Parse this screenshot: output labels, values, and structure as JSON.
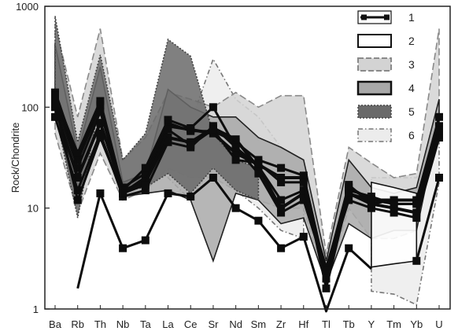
{
  "chart_data": {
    "type": "line",
    "ylabel": "Rock/Chondrite",
    "yscale": "log",
    "ylim": [
      1,
      1000
    ],
    "y_ticks": [
      {
        "value": 1,
        "label": "1"
      },
      {
        "value": 10,
        "label": "10"
      },
      {
        "value": 100,
        "label": "100"
      },
      {
        "value": 1000,
        "label": "1000"
      }
    ],
    "categories": [
      "Ba",
      "Rb",
      "Th",
      "Nb",
      "Ta",
      "La",
      "Ce",
      "Sr",
      "Nd",
      "Sm",
      "Zr",
      "Hf",
      "Tl",
      "Tb",
      "Y",
      "Tm",
      "Yb",
      "U"
    ],
    "grid": false,
    "legend_position": "top-right",
    "legend": [
      {
        "key": "1",
        "label": "1",
        "style": "line-with-square-markers",
        "color": "#111111"
      },
      {
        "key": "2",
        "label": "2",
        "style": "white-band-black-outline",
        "color": "#ffffff"
      },
      {
        "key": "3",
        "label": "3",
        "style": "light-grey-band-dashed",
        "color": "#d3d3d3"
      },
      {
        "key": "4",
        "label": "4",
        "style": "medium-grey-band-solid",
        "color": "#a9a9a9"
      },
      {
        "key": "5",
        "label": "5",
        "style": "dark-grey-band-dotted",
        "color": "#6a6a6a"
      },
      {
        "key": "6",
        "label": "6",
        "style": "very-light-band-dash-dot",
        "color": "#ececec"
      }
    ],
    "fields": [
      {
        "key": "6",
        "fill": "#ececec",
        "stroke": "#777777",
        "dash": "6,3,1.5,3",
        "upper": [
          null,
          null,
          null,
          null,
          null,
          75,
          70,
          300,
          120,
          80,
          40,
          30,
          null,
          null,
          20,
          20,
          20,
          45
        ],
        "lower": [
          null,
          null,
          null,
          null,
          null,
          20,
          12,
          28,
          15,
          10,
          6,
          5,
          null,
          null,
          1.5,
          1.4,
          1.1,
          18
        ]
      },
      {
        "key": "3",
        "fill": "#d3d3d3",
        "stroke": "#8a8a8a",
        "dash": "9,4",
        "upper": [
          650,
          80,
          600,
          30,
          50,
          140,
          120,
          100,
          140,
          100,
          130,
          130,
          3.5,
          40,
          28,
          20,
          22,
          600
        ],
        "lower": [
          55,
          9,
          35,
          12,
          15,
          25,
          20,
          20,
          15,
          12,
          10,
          10,
          1.8,
          10,
          5,
          5,
          6,
          80
        ]
      },
      {
        "key": "4",
        "fill": "#a9a9a9",
        "stroke": "#222222",
        "dash": "",
        "upper": [
          420,
          35,
          250,
          18,
          22,
          150,
          100,
          80,
          80,
          50,
          40,
          30,
          3,
          30,
          16,
          14,
          16,
          120
        ],
        "lower": [
          80,
          12,
          55,
          13,
          14,
          15,
          12,
          3,
          14,
          12,
          7,
          8,
          1.8,
          7,
          5,
          6,
          6,
          70
        ]
      },
      {
        "key": "5",
        "fill": "#6a6a6a",
        "stroke": "#444444",
        "dash": "2,2",
        "upper": [
          800,
          45,
          330,
          30,
          55,
          470,
          320,
          55,
          30,
          25,
          null,
          null,
          null,
          null,
          null,
          null,
          null,
          null
        ],
        "lower": [
          90,
          8,
          120,
          15,
          16,
          22,
          14,
          25,
          15,
          12,
          null,
          null,
          null,
          null,
          null,
          null,
          null,
          null
        ]
      },
      {
        "key": "2",
        "fill": "#ffffff",
        "stroke": "#111111",
        "dash": "",
        "upper": [
          null,
          null,
          null,
          null,
          null,
          null,
          null,
          null,
          null,
          null,
          null,
          null,
          null,
          null,
          18,
          16,
          14,
          null
        ],
        "lower": [
          null,
          null,
          null,
          null,
          null,
          null,
          null,
          null,
          null,
          null,
          null,
          null,
          null,
          null,
          2.6,
          2.8,
          3,
          null
        ]
      }
    ],
    "series": [
      {
        "key": "1",
        "values": [
          140,
          30,
          105,
          14,
          20,
          65,
          60,
          55,
          35,
          27,
          20,
          20,
          2.0,
          16,
          12,
          12,
          12,
          60
        ],
        "markers": true,
        "width": 4
      },
      {
        "key": "1",
        "values": [
          120,
          25,
          90,
          16,
          22,
          70,
          58,
          58,
          45,
          30,
          25,
          21,
          2.2,
          15,
          13,
          11,
          11,
          65
        ],
        "markers": true,
        "width": 3
      },
      {
        "key": "1",
        "values": [
          100,
          20,
          70,
          15,
          18,
          50,
          45,
          62,
          48,
          25,
          10,
          14,
          2.5,
          14,
          11,
          10,
          9,
          55
        ],
        "markers": true,
        "width": 4
      },
      {
        "key": "1",
        "values": [
          80,
          15,
          55,
          13,
          15,
          45,
          40,
          65,
          40,
          22,
          9,
          12,
          2.3,
          12,
          10,
          9,
          8,
          50
        ],
        "markers": true,
        "width": 3
      },
      {
        "key": "1",
        "values": [
          130,
          35,
          115,
          15,
          25,
          75,
          62,
          100,
          40,
          26,
          12,
          15,
          2.4,
          17,
          11,
          12,
          12,
          80
        ],
        "markers": true,
        "width": 3
      },
      {
        "key": "1",
        "values": [
          110,
          12,
          50,
          14,
          17,
          60,
          42,
          60,
          30,
          28,
          18,
          18,
          1.6,
          14,
          12,
          11,
          11,
          58
        ],
        "markers": true,
        "width": 3
      },
      {
        "key": "1",
        "values": [
          null,
          1.6,
          14,
          4,
          4.8,
          14,
          13,
          20,
          10,
          7.5,
          4,
          5.2,
          0.95,
          4,
          2.5,
          null,
          3,
          20
        ],
        "markers": [
          false,
          false,
          true,
          true,
          true,
          true,
          true,
          true,
          true,
          true,
          true,
          true,
          false,
          true,
          false,
          false,
          true,
          true
        ],
        "width": 3
      }
    ]
  }
}
